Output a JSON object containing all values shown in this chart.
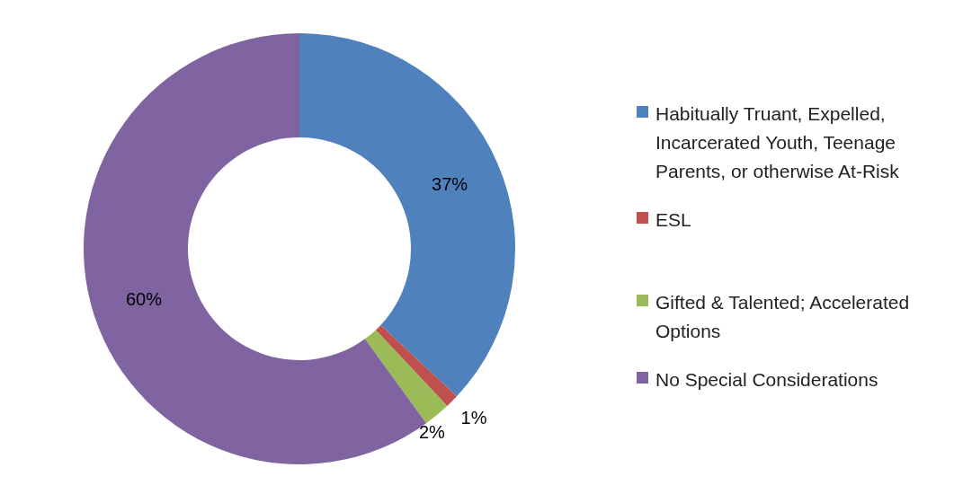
{
  "chart_data": {
    "type": "donut",
    "categories": [
      "Habitually Truant, Expelled, Incarcerated Youth, Teenage Parents, or otherwise At-Risk",
      "ESL",
      "Gifted & Talented; Accelerated Options",
      "No Special Considerations"
    ],
    "values": [
      37,
      1,
      2,
      60
    ],
    "colors": [
      "#4f81bd",
      "#c0504d",
      "#9bbb59",
      "#8064a2"
    ],
    "value_labels": [
      "37%",
      "1%",
      "2%",
      "60%"
    ],
    "legend": "right"
  }
}
